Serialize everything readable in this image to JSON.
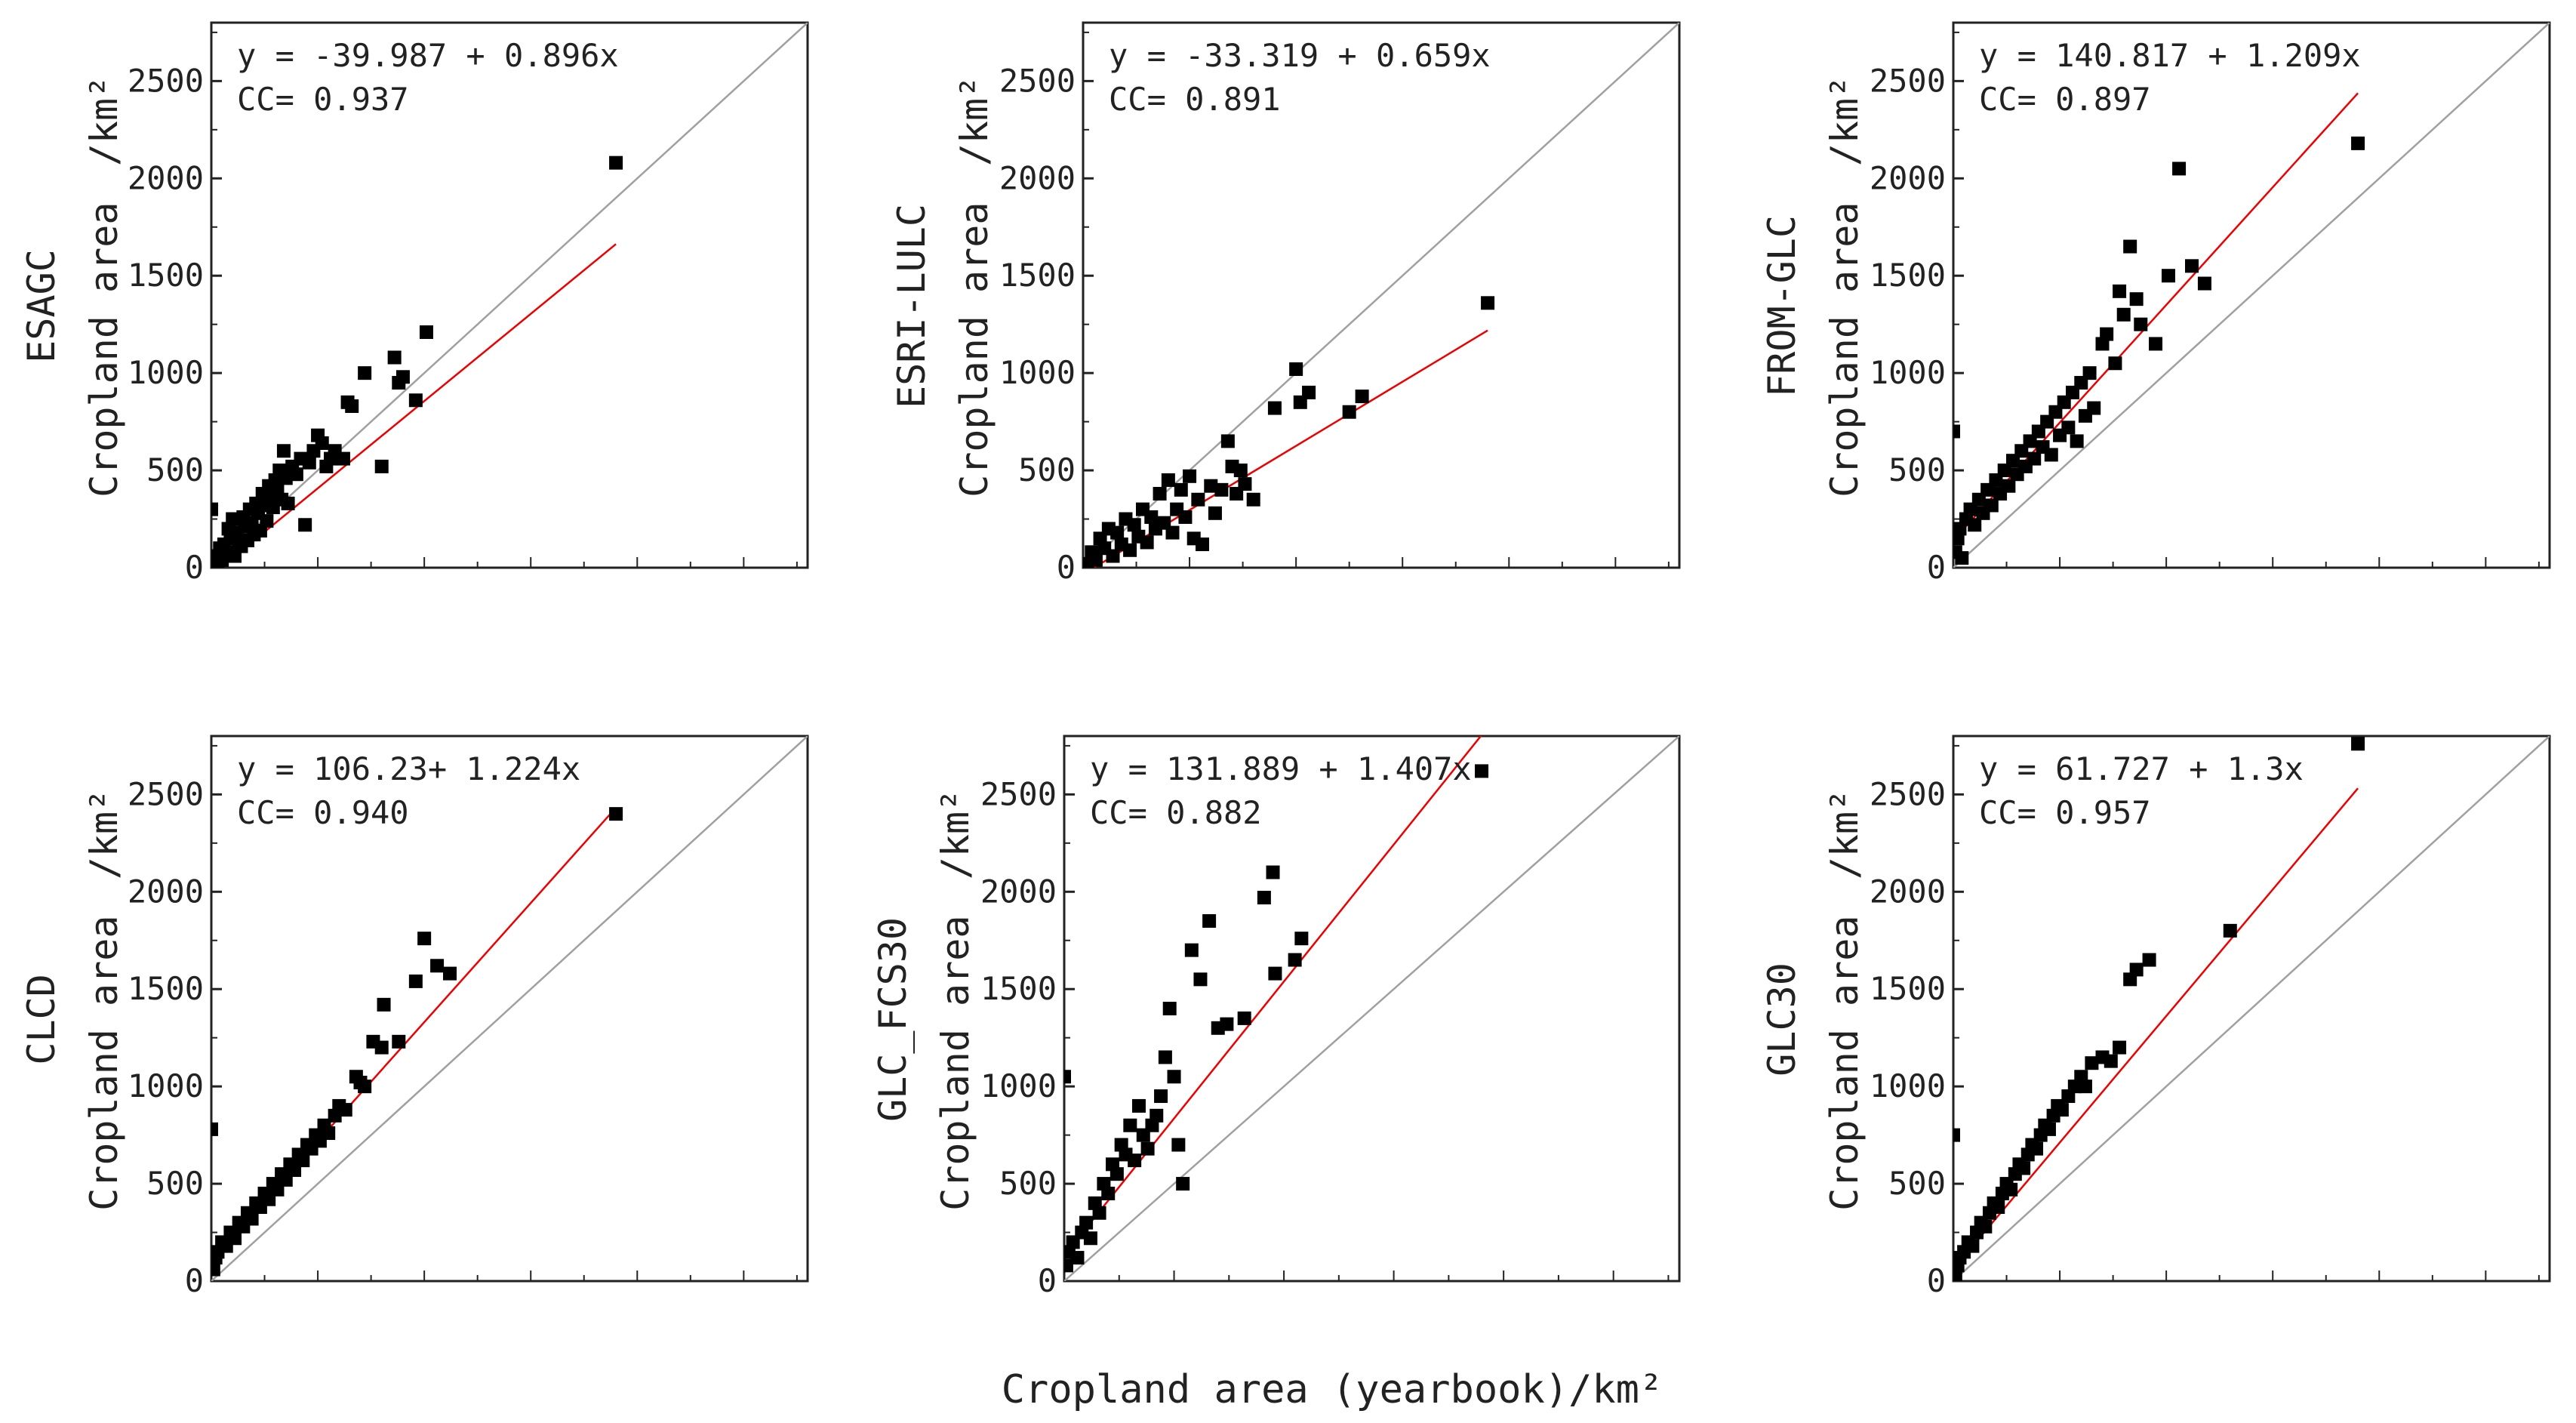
{
  "figure": {
    "x_axis_label": "Cropland area (yearbook)/km²",
    "y_tick_labels": [
      "0",
      "500",
      "1000",
      "1500",
      "2000",
      "2500"
    ],
    "y_unit_label": "/km²",
    "colors": {
      "points": "#000000",
      "fit_line": "#ee0000",
      "identity_line": "#a0a0a0",
      "axes": "#222222"
    }
  },
  "chart_data": [
    {
      "type": "scatter",
      "product": "ESAGC",
      "ylabel": "Cropland area",
      "yunit": "/km²",
      "equation": "y = -39.987 + 0.896x",
      "cc": "CC= 0.937",
      "fit": {
        "intercept": -39.987,
        "slope": 0.896,
        "x_range": [
          0,
          1900
        ]
      },
      "xlim": [
        0,
        2800
      ],
      "ylim": [
        0,
        2800
      ],
      "yticks": [
        0,
        500,
        1000,
        1500,
        2000,
        2500
      ],
      "points": [
        [
          0,
          300
        ],
        [
          10,
          20
        ],
        [
          20,
          60
        ],
        [
          30,
          10
        ],
        [
          40,
          100
        ],
        [
          50,
          40
        ],
        [
          60,
          120
        ],
        [
          70,
          80
        ],
        [
          80,
          200
        ],
        [
          90,
          150
        ],
        [
          100,
          250
        ],
        [
          110,
          60
        ],
        [
          120,
          180
        ],
        [
          130,
          130
        ],
        [
          140,
          110
        ],
        [
          150,
          260
        ],
        [
          160,
          210
        ],
        [
          170,
          140
        ],
        [
          180,
          300
        ],
        [
          190,
          230
        ],
        [
          200,
          170
        ],
        [
          210,
          330
        ],
        [
          220,
          280
        ],
        [
          230,
          190
        ],
        [
          240,
          380
        ],
        [
          250,
          320
        ],
        [
          260,
          240
        ],
        [
          270,
          420
        ],
        [
          280,
          360
        ],
        [
          290,
          310
        ],
        [
          300,
          450
        ],
        [
          310,
          400
        ],
        [
          320,
          500
        ],
        [
          330,
          350
        ],
        [
          340,
          600
        ],
        [
          350,
          460
        ],
        [
          360,
          330
        ],
        [
          380,
          520
        ],
        [
          400,
          480
        ],
        [
          420,
          560
        ],
        [
          440,
          220
        ],
        [
          460,
          540
        ],
        [
          480,
          600
        ],
        [
          500,
          680
        ],
        [
          520,
          640
        ],
        [
          540,
          520
        ],
        [
          560,
          560
        ],
        [
          580,
          600
        ],
        [
          620,
          560
        ],
        [
          640,
          850
        ],
        [
          660,
          830
        ],
        [
          720,
          1000
        ],
        [
          800,
          520
        ],
        [
          860,
          1080
        ],
        [
          880,
          950
        ],
        [
          900,
          980
        ],
        [
          960,
          860
        ],
        [
          1010,
          1210
        ],
        [
          1900,
          2080
        ]
      ]
    },
    {
      "type": "scatter",
      "product": "ESRI-LULC",
      "ylabel": "Cropland area",
      "yunit": "/km²",
      "equation": "y = -33.319 + 0.659x",
      "cc": "CC= 0.891",
      "fit": {
        "intercept": -33.319,
        "slope": 0.659,
        "x_range": [
          0,
          1900
        ]
      },
      "xlim": [
        0,
        2800
      ],
      "ylim": [
        0,
        2800
      ],
      "yticks": [
        0,
        500,
        1000,
        1500,
        2000,
        2500
      ],
      "points": [
        [
          20,
          20
        ],
        [
          40,
          80
        ],
        [
          60,
          40
        ],
        [
          80,
          150
        ],
        [
          100,
          100
        ],
        [
          120,
          200
        ],
        [
          140,
          60
        ],
        [
          160,
          180
        ],
        [
          180,
          120
        ],
        [
          200,
          250
        ],
        [
          220,
          90
        ],
        [
          240,
          220
        ],
        [
          260,
          160
        ],
        [
          280,
          300
        ],
        [
          300,
          130
        ],
        [
          320,
          260
        ],
        [
          340,
          200
        ],
        [
          360,
          380
        ],
        [
          380,
          230
        ],
        [
          400,
          450
        ],
        [
          420,
          180
        ],
        [
          440,
          300
        ],
        [
          460,
          400
        ],
        [
          480,
          260
        ],
        [
          500,
          470
        ],
        [
          520,
          150
        ],
        [
          540,
          350
        ],
        [
          560,
          120
        ],
        [
          600,
          420
        ],
        [
          620,
          280
        ],
        [
          650,
          400
        ],
        [
          680,
          650
        ],
        [
          700,
          520
        ],
        [
          720,
          380
        ],
        [
          740,
          500
        ],
        [
          760,
          430
        ],
        [
          800,
          350
        ],
        [
          900,
          820
        ],
        [
          1000,
          1020
        ],
        [
          1020,
          850
        ],
        [
          1060,
          900
        ],
        [
          1250,
          800
        ],
        [
          1310,
          880
        ],
        [
          1900,
          1360
        ]
      ]
    },
    {
      "type": "scatter",
      "product": "FROM-GLC",
      "ylabel": "Cropland area",
      "yunit": "/km²",
      "equation": "y = 140.817 + 1.209x",
      "cc": "CC= 0.897",
      "fit": {
        "intercept": 140.817,
        "slope": 1.209,
        "x_range": [
          0,
          1900
        ]
      },
      "xlim": [
        0,
        2800
      ],
      "ylim": [
        0,
        2800
      ],
      "yticks": [
        0,
        500,
        1000,
        1500,
        2000,
        2500
      ],
      "points": [
        [
          0,
          700
        ],
        [
          10,
          80
        ],
        [
          20,
          150
        ],
        [
          30,
          200
        ],
        [
          40,
          50
        ],
        [
          60,
          250
        ],
        [
          80,
          300
        ],
        [
          100,
          220
        ],
        [
          120,
          350
        ],
        [
          140,
          280
        ],
        [
          160,
          400
        ],
        [
          180,
          320
        ],
        [
          200,
          450
        ],
        [
          220,
          380
        ],
        [
          240,
          500
        ],
        [
          260,
          420
        ],
        [
          280,
          550
        ],
        [
          300,
          480
        ],
        [
          320,
          600
        ],
        [
          340,
          520
        ],
        [
          360,
          650
        ],
        [
          380,
          560
        ],
        [
          400,
          700
        ],
        [
          420,
          620
        ],
        [
          440,
          750
        ],
        [
          460,
          580
        ],
        [
          480,
          800
        ],
        [
          500,
          680
        ],
        [
          520,
          850
        ],
        [
          540,
          720
        ],
        [
          560,
          900
        ],
        [
          580,
          650
        ],
        [
          600,
          950
        ],
        [
          620,
          780
        ],
        [
          640,
          1000
        ],
        [
          660,
          820
        ],
        [
          700,
          1150
        ],
        [
          720,
          1200
        ],
        [
          760,
          1050
        ],
        [
          780,
          1420
        ],
        [
          800,
          1300
        ],
        [
          830,
          1650
        ],
        [
          860,
          1380
        ],
        [
          880,
          1250
        ],
        [
          950,
          1150
        ],
        [
          1010,
          1500
        ],
        [
          1060,
          2050
        ],
        [
          1120,
          1550
        ],
        [
          1180,
          1460
        ],
        [
          1900,
          2180
        ]
      ]
    },
    {
      "type": "scatter",
      "product": "CLCD",
      "ylabel": "Cropland area",
      "yunit": "/km²",
      "equation": "y = 106.23+ 1.224x",
      "cc": "CC= 0.940",
      "fit": {
        "intercept": 106.23,
        "slope": 1.224,
        "x_range": [
          0,
          1900
        ]
      },
      "xlim": [
        0,
        2800
      ],
      "ylim": [
        0,
        2800
      ],
      "yticks": [
        0,
        500,
        1000,
        1500,
        2000,
        2500
      ],
      "points": [
        [
          0,
          780
        ],
        [
          10,
          60
        ],
        [
          20,
          120
        ],
        [
          30,
          150
        ],
        [
          50,
          200
        ],
        [
          70,
          180
        ],
        [
          90,
          250
        ],
        [
          110,
          220
        ],
        [
          130,
          300
        ],
        [
          150,
          280
        ],
        [
          170,
          350
        ],
        [
          190,
          320
        ],
        [
          210,
          400
        ],
        [
          230,
          380
        ],
        [
          250,
          450
        ],
        [
          270,
          420
        ],
        [
          290,
          500
        ],
        [
          310,
          470
        ],
        [
          330,
          550
        ],
        [
          350,
          520
        ],
        [
          370,
          600
        ],
        [
          390,
          570
        ],
        [
          410,
          650
        ],
        [
          430,
          620
        ],
        [
          450,
          700
        ],
        [
          470,
          680
        ],
        [
          490,
          750
        ],
        [
          510,
          720
        ],
        [
          530,
          800
        ],
        [
          550,
          760
        ],
        [
          580,
          850
        ],
        [
          600,
          900
        ],
        [
          630,
          880
        ],
        [
          680,
          1050
        ],
        [
          700,
          1020
        ],
        [
          720,
          1000
        ],
        [
          760,
          1230
        ],
        [
          800,
          1200
        ],
        [
          810,
          1420
        ],
        [
          880,
          1230
        ],
        [
          960,
          1540
        ],
        [
          1000,
          1760
        ],
        [
          1060,
          1620
        ],
        [
          1120,
          1580
        ],
        [
          1900,
          2400
        ]
      ]
    },
    {
      "type": "scatter",
      "product": "GLC_FCS30",
      "ylabel": "Cropland area",
      "yunit": "/km²",
      "equation": "y = 131.889 + 1.407x",
      "cc": "CC= 0.882",
      "fit": {
        "intercept": 131.889,
        "slope": 1.407,
        "x_range": [
          0,
          1900
        ]
      },
      "xlim": [
        0,
        2800
      ],
      "ylim": [
        0,
        2800
      ],
      "yticks": [
        0,
        500,
        1000,
        1500,
        2000,
        2500
      ],
      "points": [
        [
          0,
          1050
        ],
        [
          10,
          80
        ],
        [
          20,
          150
        ],
        [
          40,
          200
        ],
        [
          60,
          120
        ],
        [
          80,
          250
        ],
        [
          100,
          300
        ],
        [
          120,
          220
        ],
        [
          140,
          400
        ],
        [
          160,
          350
        ],
        [
          180,
          500
        ],
        [
          200,
          450
        ],
        [
          220,
          600
        ],
        [
          240,
          550
        ],
        [
          260,
          700
        ],
        [
          280,
          650
        ],
        [
          300,
          800
        ],
        [
          320,
          620
        ],
        [
          340,
          900
        ],
        [
          360,
          750
        ],
        [
          380,
          680
        ],
        [
          400,
          800
        ],
        [
          420,
          850
        ],
        [
          440,
          950
        ],
        [
          460,
          1150
        ],
        [
          480,
          1400
        ],
        [
          500,
          1050
        ],
        [
          520,
          700
        ],
        [
          540,
          500
        ],
        [
          580,
          1700
        ],
        [
          620,
          1550
        ],
        [
          660,
          1850
        ],
        [
          700,
          1300
        ],
        [
          740,
          1320
        ],
        [
          820,
          1350
        ],
        [
          910,
          1970
        ],
        [
          950,
          2100
        ],
        [
          960,
          1580
        ],
        [
          1050,
          1650
        ],
        [
          1080,
          1760
        ],
        [
          1900,
          2620
        ]
      ]
    },
    {
      "type": "scatter",
      "product": "GLC30",
      "ylabel": "Cropland area",
      "yunit": "/km²",
      "equation": "y = 61.727 + 1.3x",
      "cc": "CC= 0.957",
      "fit": {
        "intercept": 61.727,
        "slope": 1.3,
        "x_range": [
          0,
          1900
        ]
      },
      "xlim": [
        0,
        2800
      ],
      "ylim": [
        0,
        2800
      ],
      "yticks": [
        0,
        500,
        1000,
        1500,
        2000,
        2500
      ],
      "points": [
        [
          0,
          750
        ],
        [
          10,
          20
        ],
        [
          20,
          80
        ],
        [
          30,
          120
        ],
        [
          50,
          150
        ],
        [
          70,
          200
        ],
        [
          90,
          180
        ],
        [
          110,
          250
        ],
        [
          130,
          300
        ],
        [
          150,
          280
        ],
        [
          170,
          350
        ],
        [
          190,
          400
        ],
        [
          210,
          380
        ],
        [
          230,
          450
        ],
        [
          250,
          500
        ],
        [
          270,
          470
        ],
        [
          290,
          550
        ],
        [
          310,
          600
        ],
        [
          330,
          580
        ],
        [
          350,
          650
        ],
        [
          370,
          700
        ],
        [
          390,
          680
        ],
        [
          410,
          750
        ],
        [
          430,
          800
        ],
        [
          450,
          780
        ],
        [
          470,
          850
        ],
        [
          490,
          900
        ],
        [
          510,
          880
        ],
        [
          540,
          950
        ],
        [
          570,
          1000
        ],
        [
          600,
          1050
        ],
        [
          620,
          1000
        ],
        [
          650,
          1120
        ],
        [
          700,
          1150
        ],
        [
          740,
          1130
        ],
        [
          780,
          1200
        ],
        [
          830,
          1550
        ],
        [
          860,
          1600
        ],
        [
          920,
          1650
        ],
        [
          1300,
          1800
        ],
        [
          1900,
          2760
        ]
      ]
    }
  ]
}
